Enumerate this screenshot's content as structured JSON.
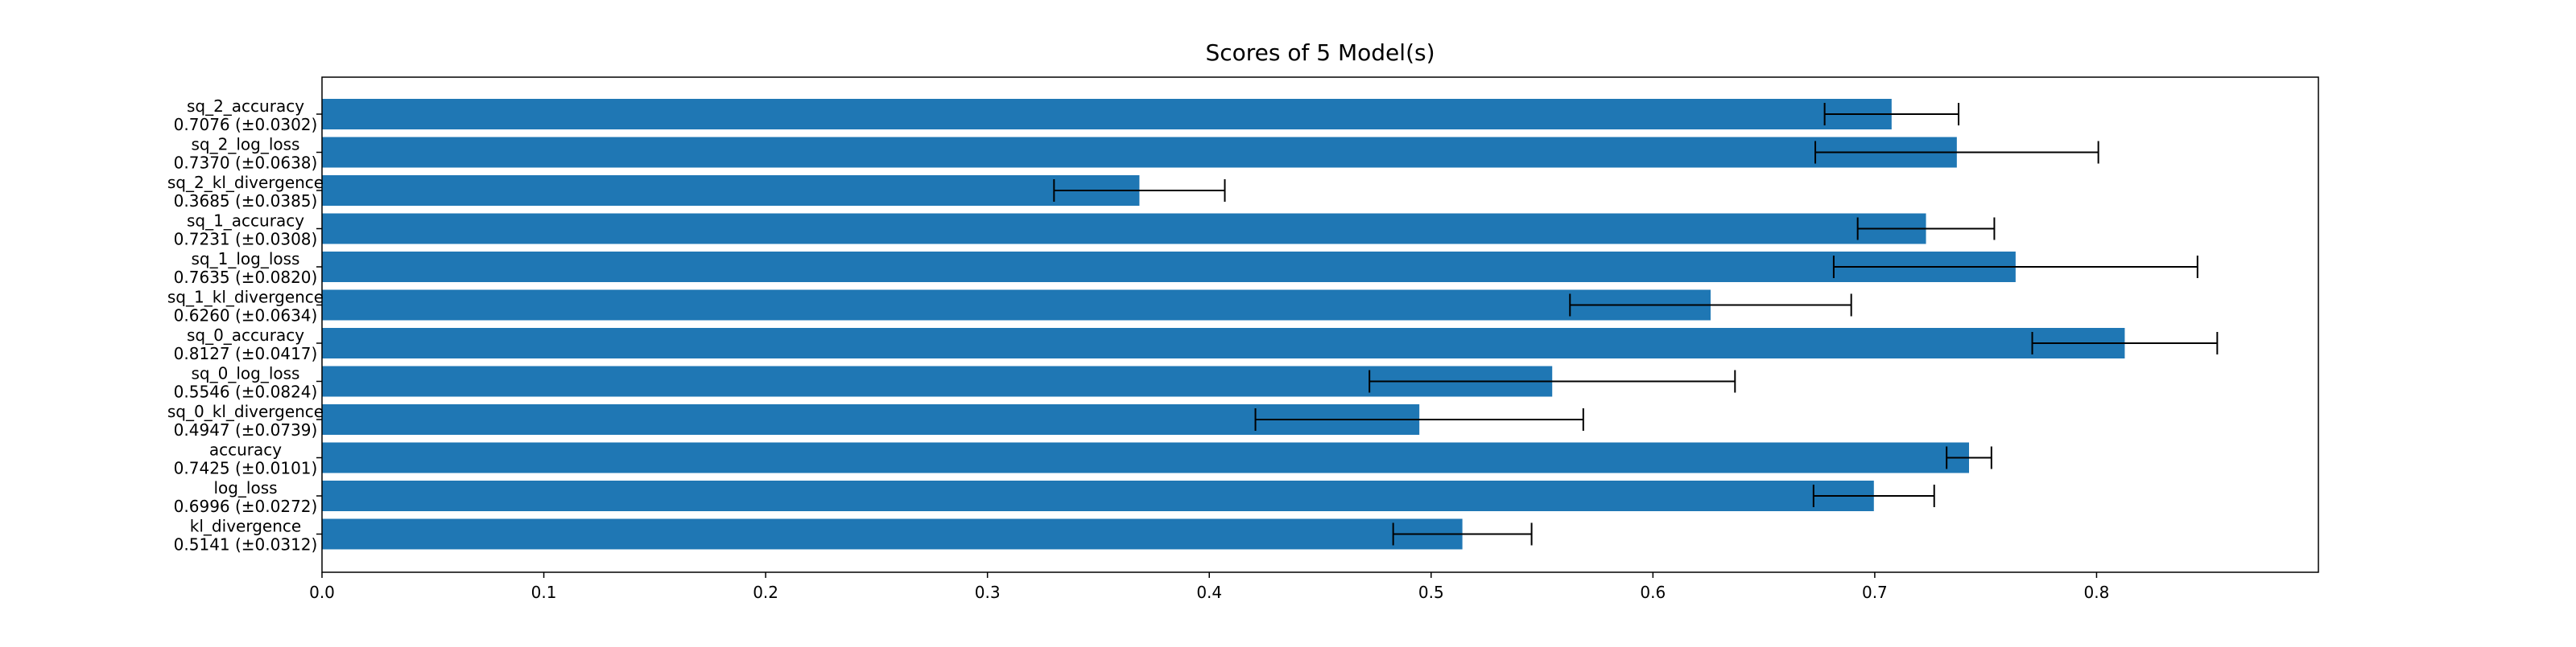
{
  "chart_data": {
    "type": "bar",
    "orientation": "horizontal",
    "title": "Scores of 5 Model(s)",
    "xlabel": "",
    "ylabel": "",
    "xlim": [
      0.0,
      0.9
    ],
    "x_ticks": [
      "0.0",
      "0.1",
      "0.2",
      "0.3",
      "0.4",
      "0.5",
      "0.6",
      "0.7",
      "0.8"
    ],
    "grid": false,
    "bar_color": "#1f77b4",
    "error_color": "#000000",
    "bars": [
      {
        "name": "sq_2_accuracy",
        "value": 0.7076,
        "err": 0.0302,
        "label": "0.7076 (±0.0302)"
      },
      {
        "name": "sq_2_log_loss",
        "value": 0.737,
        "err": 0.0638,
        "label": "0.7370 (±0.0638)"
      },
      {
        "name": "sq_2_kl_divergence",
        "value": 0.3685,
        "err": 0.0385,
        "label": "0.3685 (±0.0385)"
      },
      {
        "name": "sq_1_accuracy",
        "value": 0.7231,
        "err": 0.0308,
        "label": "0.7231 (±0.0308)"
      },
      {
        "name": "sq_1_log_loss",
        "value": 0.7635,
        "err": 0.082,
        "label": "0.7635 (±0.0820)"
      },
      {
        "name": "sq_1_kl_divergence",
        "value": 0.626,
        "err": 0.0634,
        "label": "0.6260 (±0.0634)"
      },
      {
        "name": "sq_0_accuracy",
        "value": 0.8127,
        "err": 0.0417,
        "label": "0.8127 (±0.0417)"
      },
      {
        "name": "sq_0_log_loss",
        "value": 0.5546,
        "err": 0.0824,
        "label": "0.5546 (±0.0824)"
      },
      {
        "name": "sq_0_kl_divergence",
        "value": 0.4947,
        "err": 0.0739,
        "label": "0.4947 (±0.0739)"
      },
      {
        "name": "accuracy",
        "value": 0.7425,
        "err": 0.0101,
        "label": "0.7425 (±0.0101)"
      },
      {
        "name": "log_loss",
        "value": 0.6996,
        "err": 0.0272,
        "label": "0.6996 (±0.0272)"
      },
      {
        "name": "kl_divergence",
        "value": 0.5141,
        "err": 0.0312,
        "label": "0.5141 (±0.0312)"
      }
    ]
  }
}
